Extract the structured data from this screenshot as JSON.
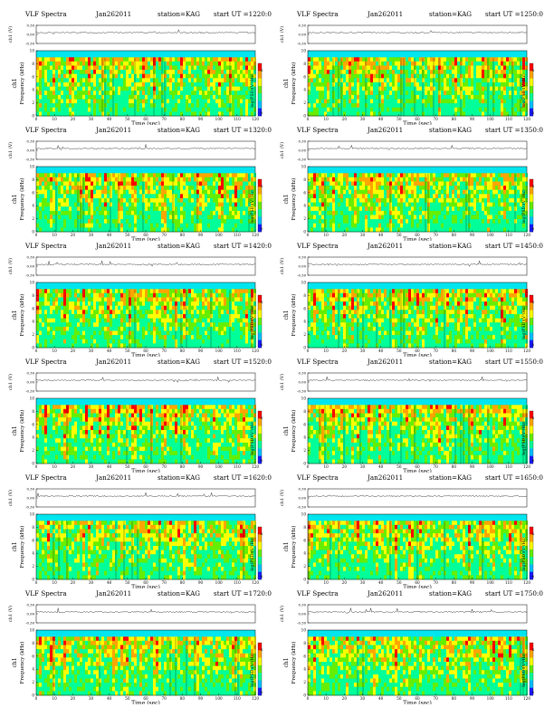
{
  "panels": [
    {
      "title": "VLF Spectra",
      "date": "Jan262011",
      "station": "station=KAG",
      "start": "start  UT  =1220:0"
    },
    {
      "title": "VLF Spectra",
      "date": "Jan262011",
      "station": "station=KAG",
      "start": "start  UT  =1250:0"
    },
    {
      "title": "VLF Spectra",
      "date": "Jan262011",
      "station": "station=KAG",
      "start": "start  UT  =1320:0"
    },
    {
      "title": "VLF Spectra",
      "date": "Jan262011",
      "station": "station=KAG",
      "start": "start  UT  =1350:0"
    },
    {
      "title": "VLF Spectra",
      "date": "Jan262011",
      "station": "station=KAG",
      "start": "start  UT  =1420:0"
    },
    {
      "title": "VLF Spectra",
      "date": "Jan262011",
      "station": "station=KAG",
      "start": "start  UT  =1450:0"
    },
    {
      "title": "VLF Spectra",
      "date": "Jan262011",
      "station": "station=KAG",
      "start": "start  UT  =1520:0"
    },
    {
      "title": "VLF Spectra",
      "date": "Jan262011",
      "station": "station=KAG",
      "start": "start  UT  =1550:0"
    },
    {
      "title": "VLF Spectra",
      "date": "Jan262011",
      "station": "station=KAG",
      "start": "start  UT  =1620:0"
    },
    {
      "title": "VLF Spectra",
      "date": "Jan262011",
      "station": "station=KAG",
      "start": "start  UT  =1650:0"
    },
    {
      "title": "VLF Spectra",
      "date": "Jan262011",
      "station": "station=KAG",
      "start": "start  UT  =1720:0"
    },
    {
      "title": "VLF Spectra",
      "date": "Jan262011",
      "station": "station=KAG",
      "start": "start  UT  =1750:0"
    }
  ],
  "chart_data": {
    "type": "heatmap",
    "count": 12,
    "xlabel": "Time  (sec)",
    "ylabel": "Frequency  (kHz)",
    "channel_label": "ch1",
    "waveform_label": "ch1 (V)",
    "colorbar_label": "log(PSD)(V²/Hz)",
    "x_ticks": [
      0,
      10,
      20,
      30,
      40,
      50,
      60,
      70,
      80,
      90,
      100,
      110,
      120
    ],
    "xlim": [
      0,
      120
    ],
    "y_ticks": [
      0,
      2,
      4,
      6,
      8,
      10
    ],
    "ylim": [
      0,
      10
    ],
    "waveform_ticks": [
      "0.30",
      "0.00",
      "-0.30"
    ],
    "waveform_ylim": [
      -0.3,
      0.3
    ],
    "colorbar_ticks": [
      "-4",
      "-8"
    ],
    "colors": [
      "#1a1aff",
      "#00bfff",
      "#00ff99",
      "#66ee00",
      "#ffff00",
      "#ffa500",
      "#ff0000"
    ]
  }
}
